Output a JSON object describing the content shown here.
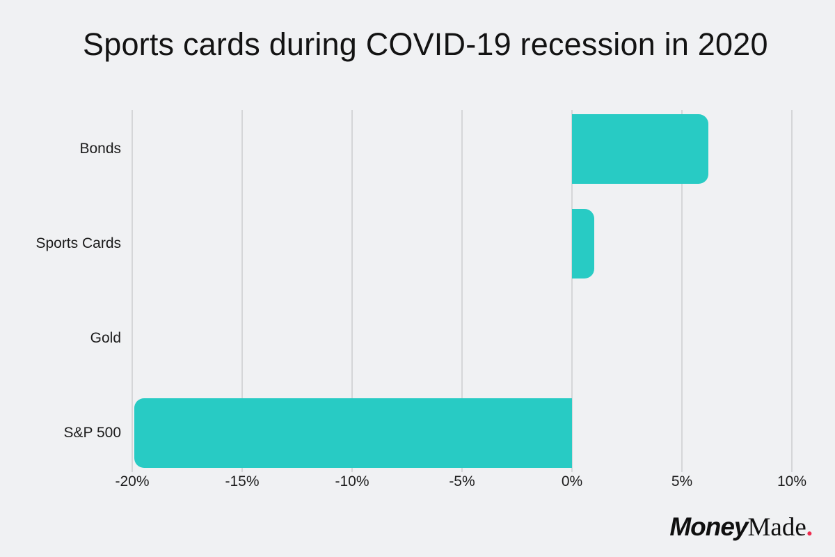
{
  "title": "Sports cards during COVID-19 recession in 2020",
  "chart_data": {
    "type": "bar",
    "orientation": "horizontal",
    "title": "Sports cards during COVID-19 recession in 2020",
    "categories": [
      "Bonds",
      "Sports Cards",
      "Gold",
      "S&P 500"
    ],
    "values": [
      6.2,
      1.0,
      0.0,
      -19.9
    ],
    "value_unit": "%",
    "xlabel": "",
    "ylabel": "",
    "xlim": [
      -20,
      10
    ],
    "xticks": [
      -20,
      -15,
      -10,
      -5,
      0,
      5,
      10
    ],
    "xtick_labels": [
      "-20%",
      "-15%",
      "-10%",
      "-5%",
      "0%",
      "5%",
      "10%"
    ],
    "grid": true,
    "legend": false,
    "bar_color": "#28cbc4",
    "gridline_color": "#d5d6d8",
    "background_color": "#f0f1f3"
  },
  "branding": {
    "money": "Money",
    "made": "Made",
    "dot": ".",
    "dot_color": "#ee2b4e"
  }
}
